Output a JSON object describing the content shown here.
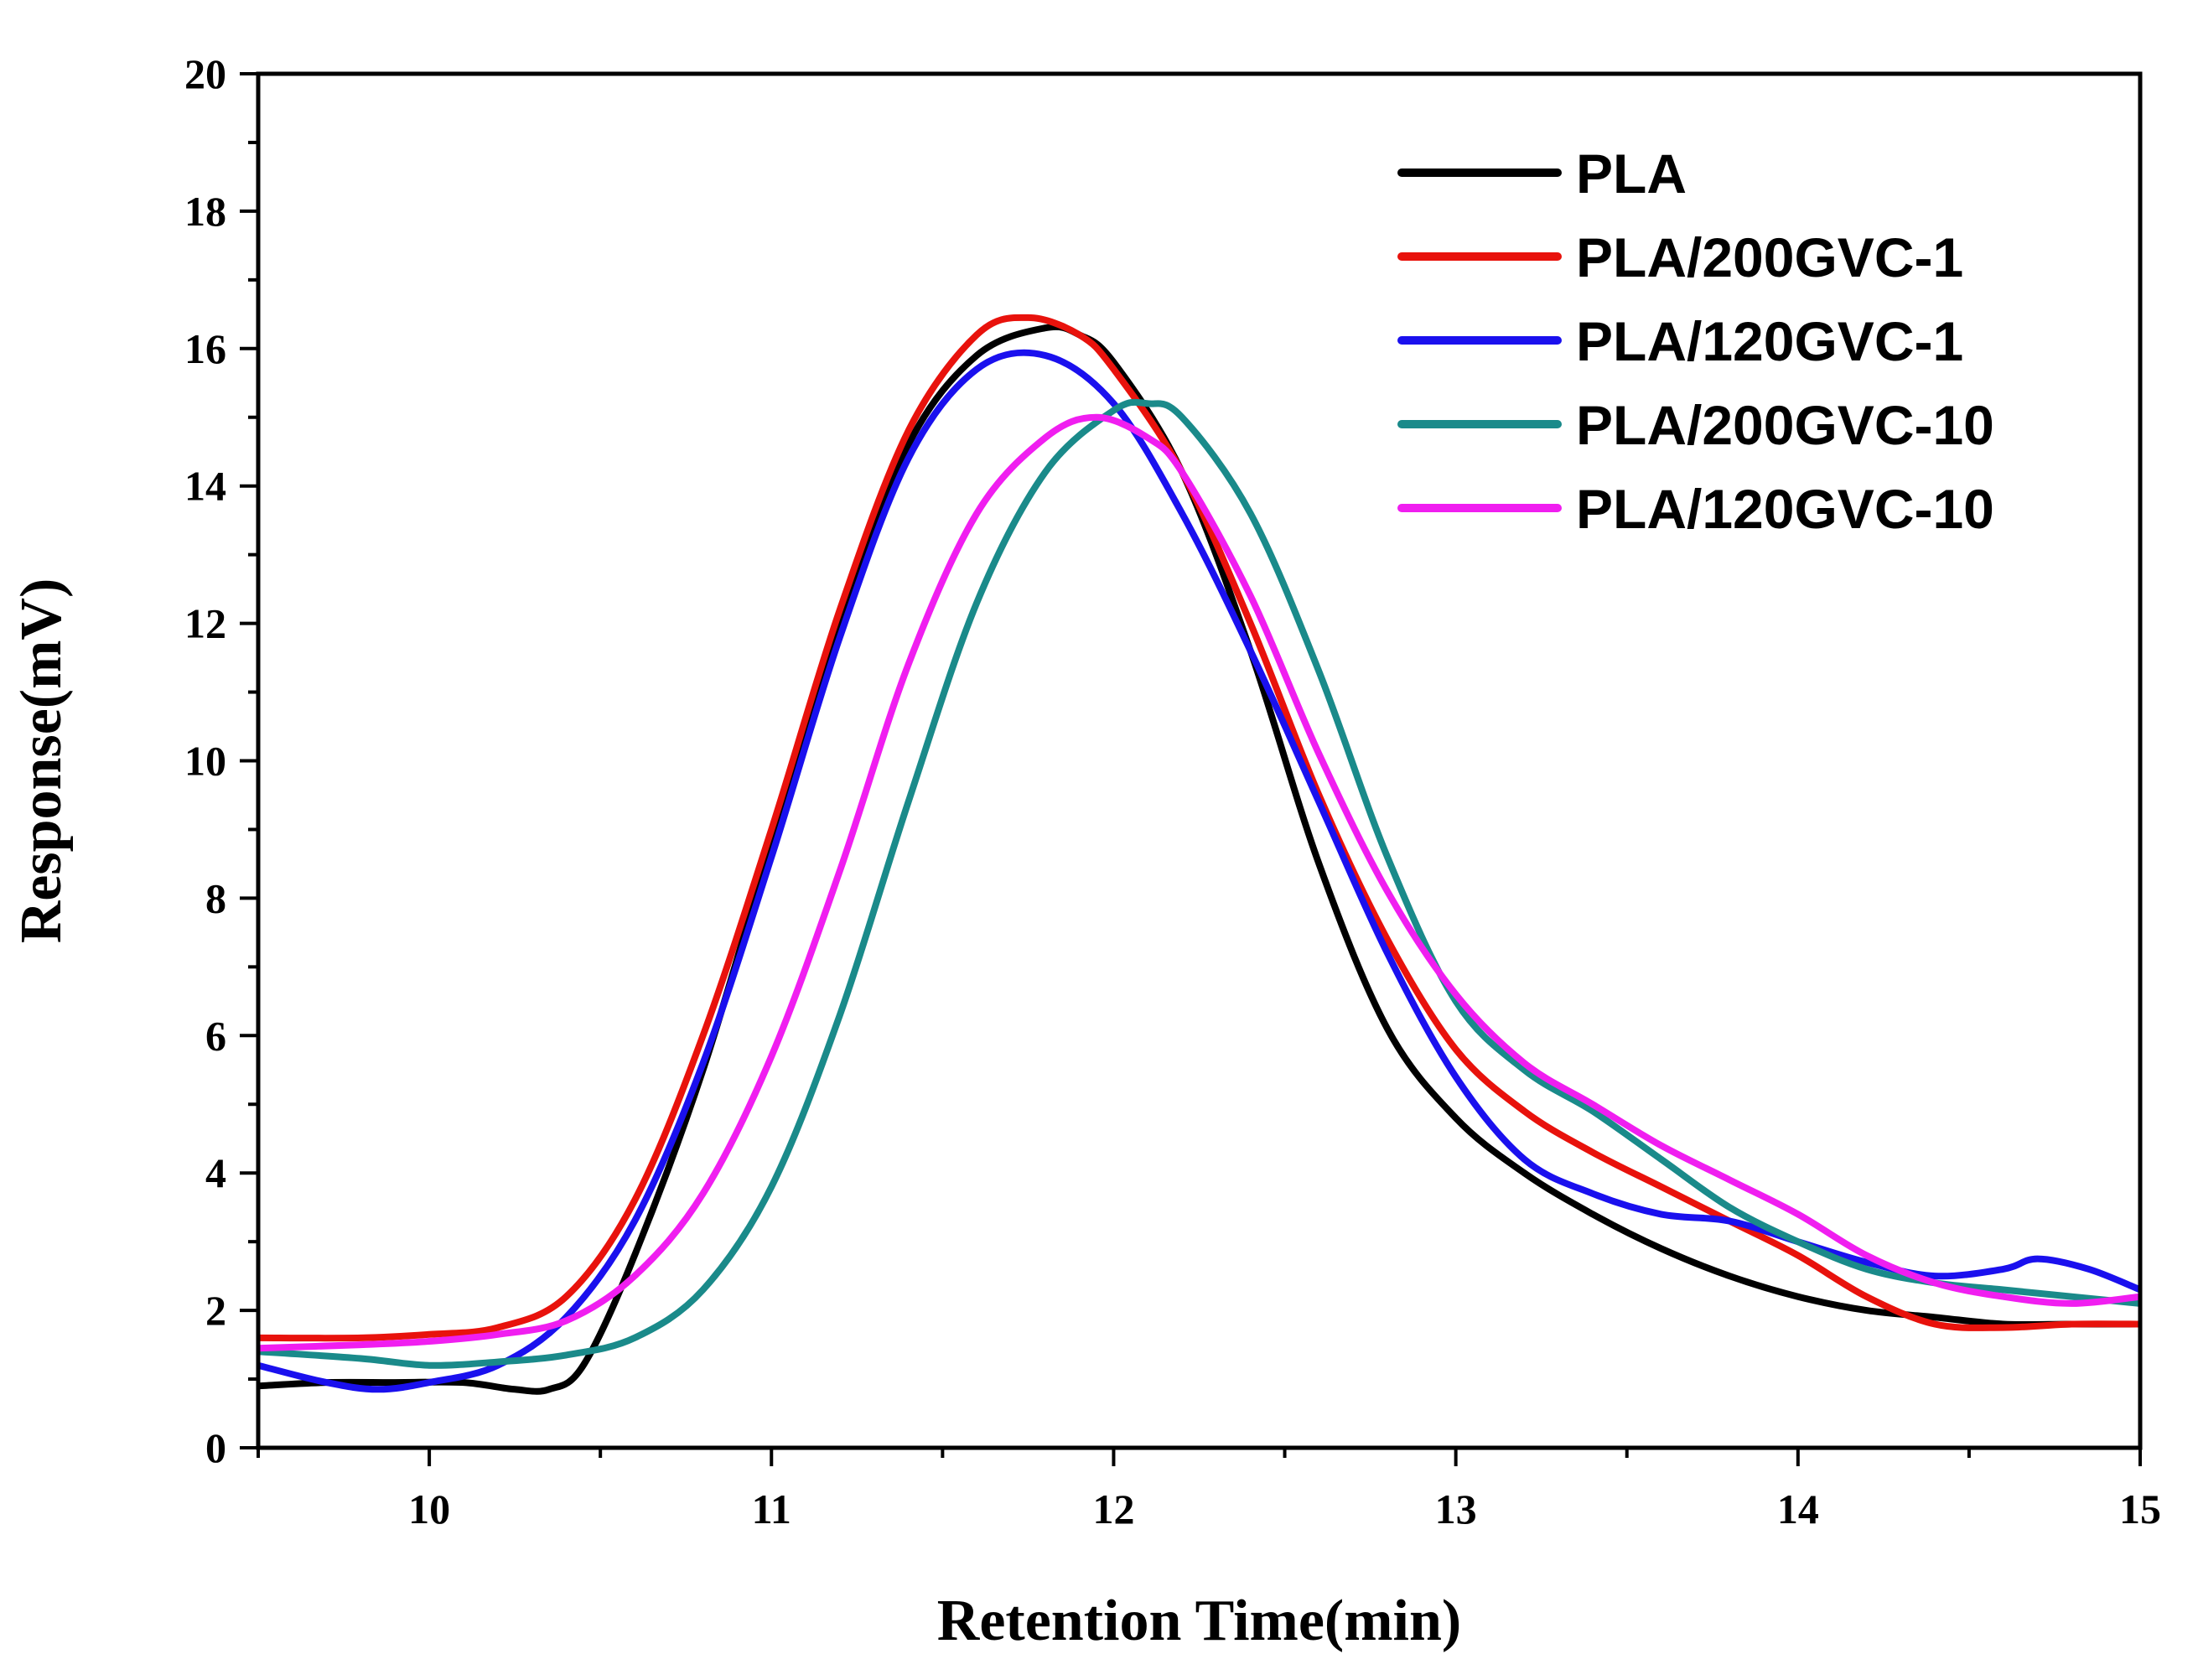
{
  "chart_data": {
    "type": "line",
    "title": "",
    "xlabel": "Retention Time(min)",
    "ylabel": "Response(mV)",
    "xlim": [
      9.5,
      15
    ],
    "ylim": [
      0,
      20
    ],
    "xticks": [
      10,
      11,
      12,
      13,
      14,
      15
    ],
    "xtick_labels": [
      "10",
      "11",
      "12",
      "13",
      "14",
      "15"
    ],
    "yticks": [
      0,
      2,
      4,
      6,
      8,
      10,
      12,
      14,
      16,
      18,
      20
    ],
    "ytick_labels": [
      "0",
      "2",
      "4",
      "6",
      "8",
      "10",
      "12",
      "14",
      "16",
      "18",
      "20"
    ],
    "grid": false,
    "legend_position": "top-right",
    "series": [
      {
        "name": "PLA",
        "color": "#000000",
        "x": [
          9.5,
          9.7,
          9.9,
          10.1,
          10.25,
          10.35,
          10.45,
          10.6,
          10.8,
          11.0,
          11.2,
          11.4,
          11.6,
          11.8,
          11.9,
          12.0,
          12.2,
          12.4,
          12.6,
          12.8,
          13.0,
          13.2,
          13.4,
          13.6,
          13.8,
          14.0,
          14.2,
          14.4,
          14.6,
          14.8,
          15.0
        ],
        "y": [
          0.9,
          0.95,
          0.95,
          0.95,
          0.85,
          0.85,
          1.2,
          2.8,
          5.5,
          8.8,
          12.0,
          14.6,
          15.9,
          16.3,
          16.2,
          15.8,
          14.2,
          11.6,
          8.5,
          6.1,
          4.8,
          4.0,
          3.4,
          2.9,
          2.5,
          2.2,
          2.0,
          1.9,
          1.8,
          1.8,
          1.8
        ]
      },
      {
        "name": "PLA/200GVC-1",
        "color": "#e8120c",
        "x": [
          9.5,
          9.8,
          10.0,
          10.2,
          10.4,
          10.6,
          10.8,
          11.0,
          11.2,
          11.4,
          11.6,
          11.75,
          11.9,
          12.0,
          12.2,
          12.4,
          12.6,
          12.8,
          13.0,
          13.2,
          13.4,
          13.6,
          13.8,
          14.0,
          14.2,
          14.4,
          14.6,
          14.8,
          15.0
        ],
        "y": [
          1.6,
          1.6,
          1.65,
          1.75,
          2.2,
          3.6,
          6.0,
          9.0,
          12.2,
          14.8,
          16.2,
          16.45,
          16.2,
          15.7,
          14.2,
          12.0,
          9.5,
          7.4,
          5.8,
          4.9,
          4.3,
          3.8,
          3.3,
          2.8,
          2.2,
          1.8,
          1.75,
          1.8,
          1.8
        ]
      },
      {
        "name": "PLA/120GVC-1",
        "color": "#1a10ee",
        "x": [
          9.5,
          9.7,
          9.85,
          10.0,
          10.2,
          10.4,
          10.6,
          10.8,
          11.0,
          11.2,
          11.4,
          11.6,
          11.8,
          12.0,
          12.2,
          12.4,
          12.6,
          12.8,
          13.0,
          13.2,
          13.4,
          13.6,
          13.8,
          14.0,
          14.2,
          14.4,
          14.6,
          14.7,
          14.85,
          15.0
        ],
        "y": [
          1.2,
          0.95,
          0.85,
          0.95,
          1.2,
          1.9,
          3.3,
          5.6,
          8.6,
          11.8,
          14.4,
          15.7,
          15.9,
          15.2,
          13.6,
          11.6,
          9.4,
          7.2,
          5.4,
          4.2,
          3.7,
          3.4,
          3.3,
          3.0,
          2.7,
          2.5,
          2.6,
          2.75,
          2.6,
          2.3
        ]
      },
      {
        "name": "PLA/200GVC-10",
        "color": "#1a8a8a",
        "x": [
          9.5,
          9.8,
          10.0,
          10.2,
          10.4,
          10.6,
          10.8,
          11.0,
          11.2,
          11.4,
          11.6,
          11.8,
          12.0,
          12.1,
          12.2,
          12.4,
          12.6,
          12.8,
          13.0,
          13.2,
          13.4,
          13.6,
          13.8,
          14.0,
          14.2,
          14.4,
          14.6,
          14.8,
          15.0
        ],
        "y": [
          1.4,
          1.3,
          1.2,
          1.25,
          1.35,
          1.6,
          2.3,
          3.8,
          6.3,
          9.4,
          12.3,
          14.2,
          15.1,
          15.2,
          15.0,
          13.6,
          11.3,
          8.6,
          6.5,
          5.5,
          4.9,
          4.2,
          3.5,
          3.0,
          2.6,
          2.4,
          2.3,
          2.2,
          2.1
        ]
      },
      {
        "name": "PLA/120GVC-10",
        "color": "#f01ef0",
        "x": [
          9.5,
          9.8,
          10.0,
          10.2,
          10.4,
          10.6,
          10.8,
          11.0,
          11.2,
          11.4,
          11.6,
          11.8,
          11.95,
          12.1,
          12.2,
          12.4,
          12.6,
          12.8,
          13.0,
          13.2,
          13.4,
          13.6,
          13.8,
          14.0,
          14.2,
          14.4,
          14.6,
          14.8,
          15.0
        ],
        "y": [
          1.45,
          1.5,
          1.55,
          1.65,
          1.85,
          2.5,
          3.7,
          5.7,
          8.4,
          11.4,
          13.6,
          14.7,
          15.0,
          14.7,
          14.2,
          12.4,
          10.1,
          8.1,
          6.6,
          5.6,
          5.0,
          4.4,
          3.9,
          3.4,
          2.8,
          2.4,
          2.2,
          2.1,
          2.2
        ]
      }
    ]
  }
}
